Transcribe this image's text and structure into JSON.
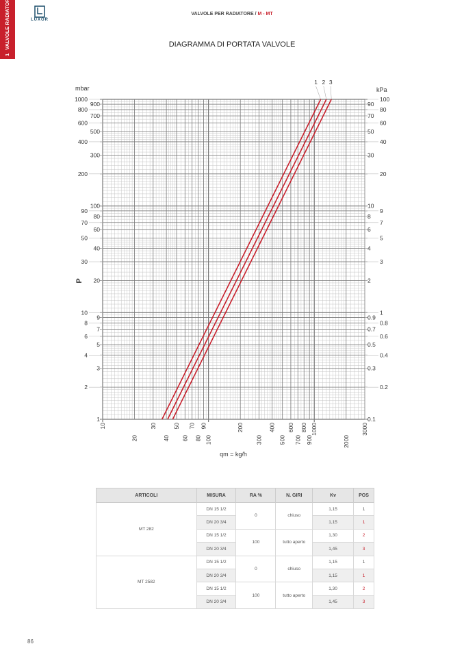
{
  "side_tab": {
    "number": "1",
    "label": "VALVOLE RADIATORE",
    "color": "#c8202c"
  },
  "logo": {
    "text": "LUXOR"
  },
  "header": {
    "section": "VALVOLE PER RADIATORE / ",
    "model": "M - MT"
  },
  "title": "DIAGRAMMA DI PORTATA VALVOLE",
  "chart_data": {
    "type": "line",
    "scale": "log-log",
    "grid": true,
    "xlabel": "qm = kg/h",
    "ylabel": "P",
    "y_unit_left": "mbar",
    "y_unit_right": "kPa",
    "xlim": [
      10,
      3000
    ],
    "ylim": [
      1,
      1000
    ],
    "x_ticks": [
      "10",
      "20",
      "30",
      "40",
      "50",
      "60",
      "70",
      "80",
      "90",
      "100",
      "200",
      "300",
      "400",
      "500",
      "600",
      "700",
      "800",
      "900",
      "1000",
      "2000",
      "3000"
    ],
    "y_ticks_left": [
      "1000",
      "900",
      "800",
      "700",
      "600",
      "500",
      "400",
      "300",
      "200",
      "100",
      "90",
      "80",
      "70",
      "60",
      "50",
      "40",
      "30",
      "20",
      "10",
      "9",
      "8",
      "7",
      "6",
      "5",
      "4",
      "3",
      "2",
      "1"
    ],
    "y_ticks_right": [
      "100",
      "90",
      "80",
      "70",
      "60",
      "50",
      "40",
      "30",
      "20",
      "10",
      "9",
      "8",
      "7",
      "6",
      "5",
      "4",
      "3",
      "2",
      "1",
      "0.9",
      "0.8",
      "0.7",
      "0.6",
      "0.5",
      "0.4",
      "0.3",
      "0.2",
      "0.1"
    ],
    "series": [
      {
        "name": "1",
        "color": "#c8202c",
        "points": [
          [
            36.4,
            1
          ],
          [
            1150,
            1000
          ]
        ]
      },
      {
        "name": "2",
        "color": "#c8202c",
        "points": [
          [
            41.1,
            1
          ],
          [
            1300,
            1000
          ]
        ]
      },
      {
        "name": "3",
        "color": "#c8202c",
        "points": [
          [
            45.9,
            1
          ],
          [
            1450,
            1000
          ]
        ]
      }
    ]
  },
  "table": {
    "headers": [
      "ARTICOLI",
      "MISURA",
      "RA %",
      "N. GIRI",
      "Kv",
      "POS"
    ],
    "groups": [
      {
        "articolo": "MT 282",
        "rows": [
          {
            "misura": "DN 15 1/2",
            "ra": "0",
            "giri": "chiuso",
            "kv": "1,15",
            "pos": "1"
          },
          {
            "misura": "DN 20 3/4",
            "kv": "1,15",
            "pos": "1"
          },
          {
            "misura": "DN 15 1/2",
            "ra": "100",
            "giri": "tutto aperto",
            "kv": "1,30",
            "pos": "2"
          },
          {
            "misura": "DN 20 3/4",
            "kv": "1,45",
            "pos": "3"
          }
        ]
      },
      {
        "articolo": "MT 2582",
        "rows": [
          {
            "misura": "DN 15 1/2",
            "ra": "0",
            "giri": "chiuso",
            "kv": "1,15",
            "pos": "1"
          },
          {
            "misura": "DN 20 3/4",
            "kv": "1,15",
            "pos": "1"
          },
          {
            "misura": "DN 15 1/2",
            "ra": "100",
            "giri": "tutto aperto",
            "kv": "1,30",
            "pos": "2"
          },
          {
            "misura": "DN 20 3/4",
            "kv": "1,45",
            "pos": "3"
          }
        ]
      }
    ]
  },
  "page_number": "86"
}
